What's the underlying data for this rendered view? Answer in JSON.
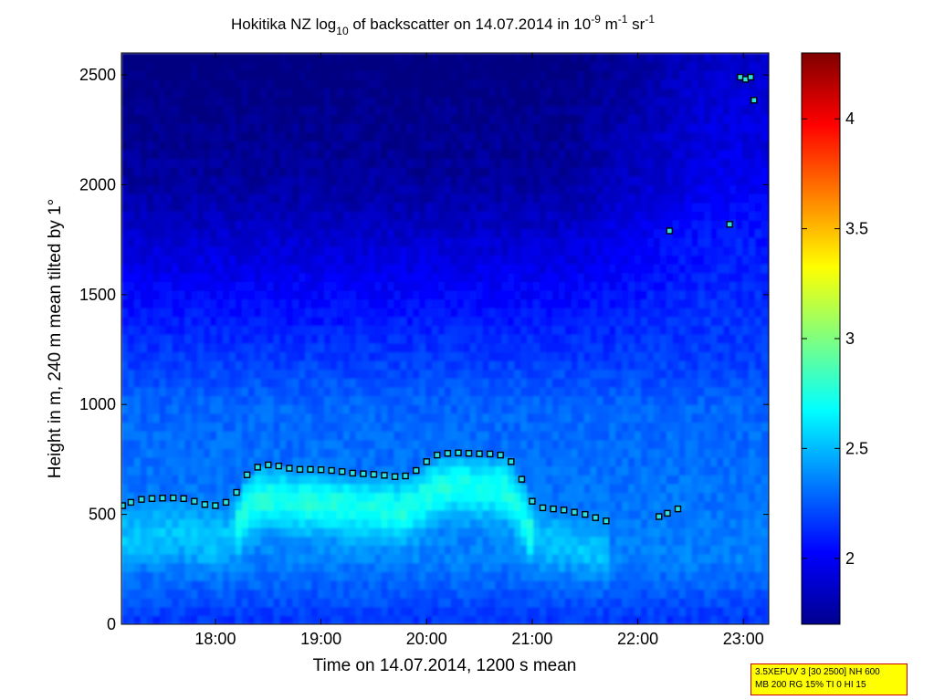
{
  "chart_data": {
    "type": "heatmap",
    "title": {
      "main": "Hokitika NZ log",
      "log_sub": "10",
      "mid": " of backscatter on 14.07.2014 in 10",
      "exp1": "-9",
      "unit_m": " m",
      "exp2": "-1",
      "unit_sr": " sr",
      "exp3": "-1"
    },
    "xlabel": "Time on 14.07.2014, 1200 s mean",
    "ylabel": "Height in m, 240 m mean tilted by 1°",
    "x_ticks": [
      "18:00",
      "19:00",
      "20:00",
      "21:00",
      "22:00",
      "23:00"
    ],
    "x_tick_hours": [
      18,
      19,
      20,
      21,
      22,
      23
    ],
    "xlim_hours": [
      17.11,
      23.24
    ],
    "y_ticks": [
      0,
      500,
      1000,
      1500,
      2000,
      2500
    ],
    "ylim": [
      0,
      2600
    ],
    "colorbar": {
      "ticks": [
        "2",
        "2.5",
        "3",
        "3.5",
        "4"
      ],
      "tick_values": [
        2,
        2.5,
        3,
        3.5,
        4
      ],
      "range": [
        1.7,
        4.3
      ],
      "colormap": "jet"
    },
    "cloud_base_markers": [
      [
        17.12,
        540
      ],
      [
        17.2,
        555
      ],
      [
        17.3,
        568
      ],
      [
        17.4,
        572
      ],
      [
        17.5,
        574
      ],
      [
        17.6,
        575
      ],
      [
        17.7,
        572
      ],
      [
        17.8,
        560
      ],
      [
        17.9,
        545
      ],
      [
        18.0,
        540
      ],
      [
        18.1,
        555
      ],
      [
        18.2,
        600
      ],
      [
        18.3,
        680
      ],
      [
        18.4,
        715
      ],
      [
        18.5,
        725
      ],
      [
        18.6,
        720
      ],
      [
        18.7,
        710
      ],
      [
        18.8,
        705
      ],
      [
        18.9,
        705
      ],
      [
        19.0,
        703
      ],
      [
        19.1,
        700
      ],
      [
        19.2,
        695
      ],
      [
        19.3,
        688
      ],
      [
        19.4,
        685
      ],
      [
        19.5,
        682
      ],
      [
        19.6,
        678
      ],
      [
        19.7,
        672
      ],
      [
        19.8,
        675
      ],
      [
        19.9,
        700
      ],
      [
        20.0,
        740
      ],
      [
        20.1,
        770
      ],
      [
        20.2,
        778
      ],
      [
        20.3,
        780
      ],
      [
        20.4,
        778
      ],
      [
        20.5,
        776
      ],
      [
        20.6,
        775
      ],
      [
        20.7,
        770
      ],
      [
        20.8,
        740
      ],
      [
        20.9,
        660
      ],
      [
        21.0,
        560
      ],
      [
        21.1,
        530
      ],
      [
        21.2,
        525
      ],
      [
        21.3,
        520
      ],
      [
        21.4,
        510
      ],
      [
        21.5,
        500
      ],
      [
        21.6,
        485
      ],
      [
        21.7,
        470
      ],
      [
        22.2,
        490
      ],
      [
        22.28,
        505
      ],
      [
        22.38,
        525
      ],
      [
        22.3,
        1790
      ],
      [
        22.87,
        1820
      ],
      [
        22.97,
        2490
      ],
      [
        23.02,
        2480
      ],
      [
        23.07,
        2490
      ],
      [
        23.1,
        2385
      ]
    ],
    "grid": false,
    "legend": "colorbar-right"
  },
  "info_box": {
    "line1": "3.5XEFUV 3 [30 2500] NH 600",
    "line2": "MB 200 RG 15% TI 0 HI 15"
  },
  "colors": {
    "marker_fill": "#2fe0e0",
    "marker_edge": "#000000",
    "info_bg": "#ffff00",
    "info_border": "#cc0000"
  }
}
